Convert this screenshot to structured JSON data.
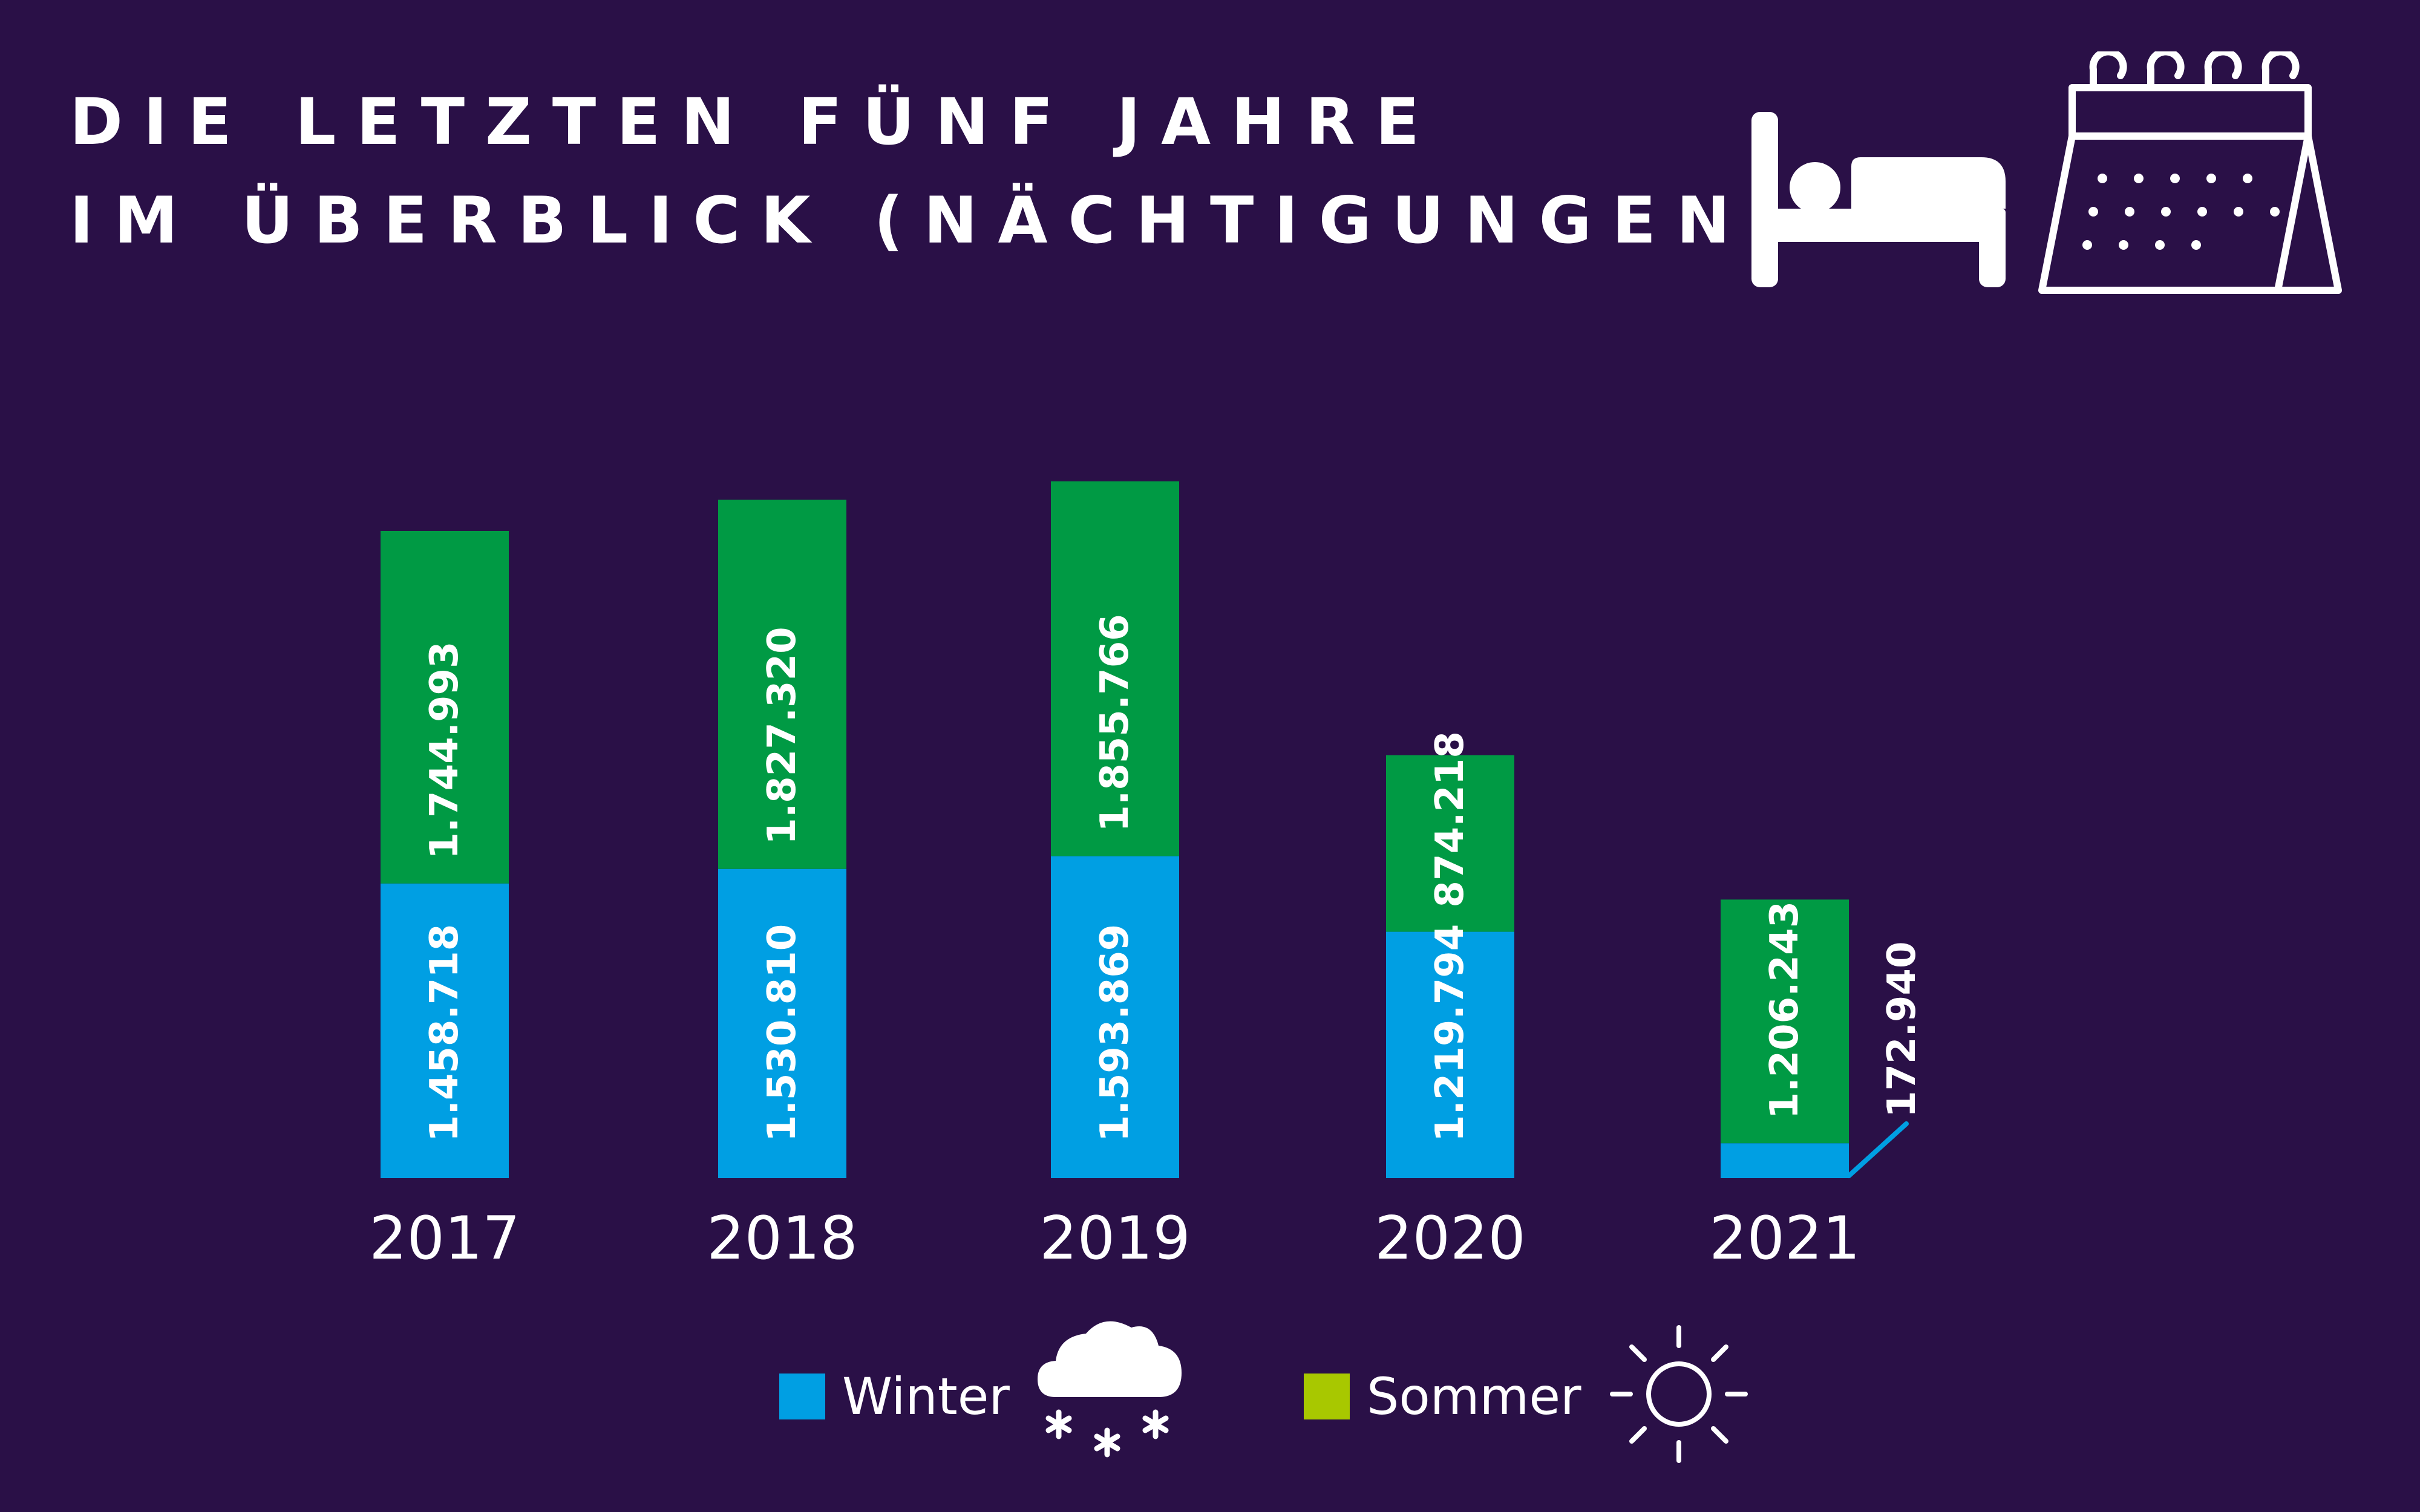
{
  "header": {
    "title_line1": "DIE LETZTEN FÜNF JAHRE",
    "title_line2": "IM ÜBERBLICK (NÄCHTIGUNGEN)",
    "icons": [
      "bed-icon",
      "calendar-icon"
    ]
  },
  "colors": {
    "background": "#2a1047",
    "winter": "#009fe3",
    "sommer_bar": "#009a44",
    "sommer_legend": "#a8c800",
    "text": "#ffffff"
  },
  "chart_data": {
    "type": "bar",
    "stacked": true,
    "categories": [
      "2017",
      "2018",
      "2019",
      "2020",
      "2021"
    ],
    "series": [
      {
        "name": "Winter",
        "values": [
          1458718,
          1530810,
          1593869,
          1219794,
          172940
        ],
        "labels": [
          "1.458.718",
          "1.530.810",
          "1.593.869",
          "1.219.794",
          "172.940"
        ]
      },
      {
        "name": "Sommer",
        "values": [
          1744993,
          1827320,
          1855766,
          874218,
          1206243
        ],
        "labels": [
          "1.744.993",
          "1.827.320",
          "1.855.766",
          "874.218",
          "1.206.243"
        ]
      }
    ],
    "ylim": [
      0,
      3500000
    ],
    "grid": false,
    "legend": "bottom-center",
    "value_labels": "vertical-inside"
  },
  "legend": {
    "winter_label": "Winter",
    "sommer_label": "Sommer",
    "winter_icon": "snow-cloud-icon",
    "sommer_icon": "sun-icon"
  }
}
